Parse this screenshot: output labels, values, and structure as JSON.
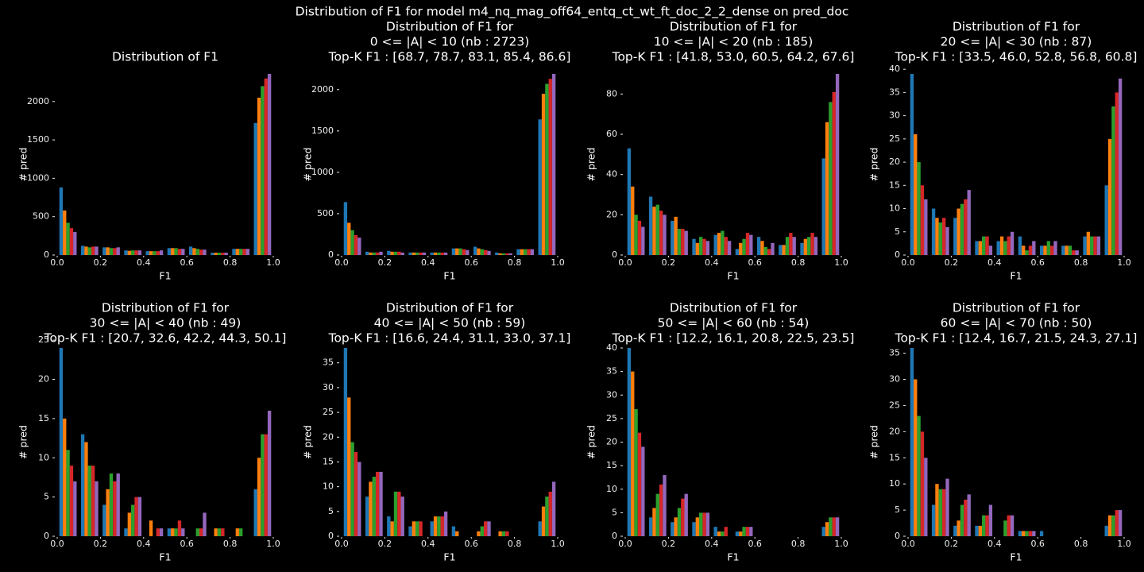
{
  "title": "Distribution of F1 for model m4_nq_mag_off64_entq_ct_wt_ft_doc_2_2_dense on pred_doc",
  "chart_data": [
    {
      "type": "histogram",
      "title_lines": [
        "Distribution of F1"
      ],
      "x_label": "F1",
      "y_label": "# pred",
      "bins": [
        0,
        0.1,
        0.2,
        0.3,
        0.4,
        0.5,
        0.6,
        0.7,
        0.8,
        0.9,
        1.0
      ],
      "xlim": [
        0,
        1
      ],
      "xticks": [
        {
          "value": 0,
          "label": "0.0"
        },
        {
          "value": 0.2,
          "label": "0.2"
        },
        {
          "value": 0.4,
          "label": "0.4"
        },
        {
          "value": 0.6,
          "label": "0.6"
        },
        {
          "value": 0.8,
          "label": "0.8"
        },
        {
          "value": 1,
          "label": "1.0"
        }
      ],
      "ylim": [
        0,
        2360
      ],
      "yticks": [
        0,
        500,
        1000,
        1500,
        2000
      ],
      "series": [
        {
          "color": "#1f77b4",
          "values": [
            880,
            120,
            100,
            60,
            50,
            90,
            110,
            30,
            80,
            1720
          ]
        },
        {
          "color": "#ff7f0e",
          "values": [
            580,
            110,
            100,
            55,
            50,
            90,
            90,
            30,
            80,
            2050
          ]
        },
        {
          "color": "#2ca02c",
          "values": [
            420,
            100,
            90,
            60,
            50,
            90,
            80,
            30,
            80,
            2200
          ]
        },
        {
          "color": "#d62728",
          "values": [
            350,
            110,
            90,
            60,
            50,
            80,
            70,
            30,
            80,
            2300
          ]
        },
        {
          "color": "#9467bd",
          "values": [
            300,
            110,
            100,
            60,
            60,
            80,
            70,
            30,
            80,
            2360
          ]
        }
      ]
    },
    {
      "type": "histogram",
      "title_lines": [
        "Distribution of F1 for",
        "0 <= |A| < 10 (nb : 2723)",
        "Top-K F1 : [68.7, 78.7, 83.1, 85.4, 86.6]"
      ],
      "x_label": "F1",
      "y_label": "# pred",
      "bins": [
        0,
        0.1,
        0.2,
        0.3,
        0.4,
        0.5,
        0.6,
        0.7,
        0.8,
        0.9,
        1.0
      ],
      "xlim": [
        0,
        1
      ],
      "xticks": [
        {
          "value": 0,
          "label": "0.0"
        },
        {
          "value": 0.2,
          "label": "0.2"
        },
        {
          "value": 0.4,
          "label": "0.4"
        },
        {
          "value": 0.6,
          "label": "0.6"
        },
        {
          "value": 0.8,
          "label": "0.8"
        },
        {
          "value": 1,
          "label": "1.0"
        }
      ],
      "ylim": [
        0,
        2190
      ],
      "yticks": [
        0,
        500,
        1000,
        1500,
        2000
      ],
      "series": [
        {
          "color": "#1f77b4",
          "values": [
            640,
            40,
            50,
            30,
            30,
            80,
            100,
            30,
            70,
            1640
          ]
        },
        {
          "color": "#ff7f0e",
          "values": [
            390,
            30,
            40,
            30,
            30,
            80,
            80,
            20,
            70,
            1950
          ]
        },
        {
          "color": "#2ca02c",
          "values": [
            300,
            30,
            40,
            30,
            30,
            80,
            70,
            20,
            70,
            2070
          ]
        },
        {
          "color": "#d62728",
          "values": [
            240,
            30,
            40,
            30,
            30,
            70,
            60,
            20,
            70,
            2130
          ]
        },
        {
          "color": "#9467bd",
          "values": [
            210,
            40,
            30,
            30,
            30,
            60,
            50,
            20,
            70,
            2190
          ]
        }
      ]
    },
    {
      "type": "histogram",
      "title_lines": [
        "Distribution of F1 for",
        "10 <= |A| < 20 (nb : 185)",
        "Top-K F1 : [41.8, 53.0, 60.5, 64.2, 67.6]"
      ],
      "x_label": "F1",
      "y_label": "# pred",
      "bins": [
        0,
        0.1,
        0.2,
        0.3,
        0.4,
        0.5,
        0.6,
        0.7,
        0.8,
        0.9,
        1.0
      ],
      "xlim": [
        0,
        1
      ],
      "xticks": [
        {
          "value": 0,
          "label": "0.0"
        },
        {
          "value": 0.2,
          "label": "0.2"
        },
        {
          "value": 0.4,
          "label": "0.4"
        },
        {
          "value": 0.6,
          "label": "0.6"
        },
        {
          "value": 0.8,
          "label": "0.8"
        },
        {
          "value": 1,
          "label": "1.0"
        }
      ],
      "ylim": [
        0,
        90
      ],
      "yticks": [
        0,
        20,
        40,
        60,
        80
      ],
      "series": [
        {
          "color": "#1f77b4",
          "values": [
            53,
            29,
            17,
            8,
            10,
            3,
            9,
            5,
            6,
            48
          ]
        },
        {
          "color": "#ff7f0e",
          "values": [
            34,
            24,
            19,
            6,
            11,
            6,
            7,
            5,
            8,
            66
          ]
        },
        {
          "color": "#2ca02c",
          "values": [
            20,
            25,
            13,
            9,
            12,
            8,
            4,
            9,
            9,
            76
          ]
        },
        {
          "color": "#d62728",
          "values": [
            17,
            22,
            13,
            8,
            9,
            11,
            3,
            11,
            11,
            81
          ]
        },
        {
          "color": "#9467bd",
          "values": [
            14,
            20,
            12,
            7,
            7,
            10,
            6,
            9,
            9,
            90
          ]
        }
      ]
    },
    {
      "type": "histogram",
      "title_lines": [
        "Distribution of F1 for",
        "20 <= |A| < 30 (nb : 87)",
        "Top-K F1 : [33.5, 46.0, 52.8, 56.8, 60.8]"
      ],
      "x_label": "F1",
      "y_label": "# pred",
      "bins": [
        0,
        0.1,
        0.2,
        0.3,
        0.4,
        0.5,
        0.6,
        0.7,
        0.8,
        0.9,
        1.0
      ],
      "xlim": [
        0,
        1
      ],
      "xticks": [
        {
          "value": 0,
          "label": "0.0"
        },
        {
          "value": 0.2,
          "label": "0.2"
        },
        {
          "value": 0.4,
          "label": "0.4"
        },
        {
          "value": 0.6,
          "label": "0.6"
        },
        {
          "value": 0.8,
          "label": "0.8"
        },
        {
          "value": 1,
          "label": "1.0"
        }
      ],
      "ylim": [
        0,
        39
      ],
      "yticks": [
        0,
        5,
        10,
        15,
        20,
        25,
        30,
        35,
        40
      ],
      "series": [
        {
          "color": "#1f77b4",
          "values": [
            39,
            10,
            8,
            3,
            3,
            4,
            2,
            2,
            4,
            15
          ]
        },
        {
          "color": "#ff7f0e",
          "values": [
            26,
            8,
            10,
            3,
            4,
            2,
            2,
            2,
            5,
            25
          ]
        },
        {
          "color": "#2ca02c",
          "values": [
            20,
            7,
            11,
            4,
            3,
            1,
            3,
            2,
            4,
            32
          ]
        },
        {
          "color": "#d62728",
          "values": [
            15,
            8,
            12,
            4,
            4,
            2,
            2,
            1,
            4,
            35
          ]
        },
        {
          "color": "#9467bd",
          "values": [
            12,
            6,
            14,
            2,
            5,
            3,
            3,
            1,
            4,
            38
          ]
        }
      ]
    },
    {
      "type": "histogram",
      "title_lines": [
        "Distribution of F1 for",
        "30 <= |A| < 40 (nb : 49)",
        "Top-K F1 : [20.7, 32.6, 42.2, 44.3, 50.1]"
      ],
      "x_label": "F1",
      "y_label": "# pred",
      "bins": [
        0,
        0.1,
        0.2,
        0.3,
        0.4,
        0.5,
        0.6,
        0.7,
        0.8,
        0.9,
        1.0
      ],
      "xlim": [
        0,
        1
      ],
      "xticks": [
        {
          "value": 0,
          "label": "0.0"
        },
        {
          "value": 0.2,
          "label": "0.2"
        },
        {
          "value": 0.4,
          "label": "0.4"
        },
        {
          "value": 0.6,
          "label": "0.6"
        },
        {
          "value": 0.8,
          "label": "0.8"
        },
        {
          "value": 1,
          "label": "1.0"
        }
      ],
      "ylim": [
        0,
        24
      ],
      "yticks": [
        0,
        5,
        10,
        15,
        20,
        25
      ],
      "series": [
        {
          "color": "#1f77b4",
          "values": [
            24,
            13,
            4,
            1,
            0,
            1,
            0,
            0,
            0,
            6
          ]
        },
        {
          "color": "#ff7f0e",
          "values": [
            15,
            12,
            6,
            3,
            2,
            1,
            0,
            1,
            1,
            10
          ]
        },
        {
          "color": "#2ca02c",
          "values": [
            11,
            9,
            8,
            4,
            0,
            1,
            1,
            1,
            1,
            13
          ]
        },
        {
          "color": "#d62728",
          "values": [
            9,
            9,
            7,
            5,
            1,
            2,
            1,
            1,
            0,
            13
          ]
        },
        {
          "color": "#9467bd",
          "values": [
            7,
            7,
            8,
            5,
            1,
            1,
            3,
            0,
            0,
            16
          ]
        }
      ]
    },
    {
      "type": "histogram",
      "title_lines": [
        "Distribution of F1 for",
        "40 <= |A| < 50 (nb : 59)",
        "Top-K F1 : [16.6, 24.4, 31.1, 33.0, 37.1]"
      ],
      "x_label": "F1",
      "y_label": "# pred",
      "bins": [
        0,
        0.1,
        0.2,
        0.3,
        0.4,
        0.5,
        0.6,
        0.7,
        0.8,
        0.9,
        1.0
      ],
      "xlim": [
        0,
        1
      ],
      "xticks": [
        {
          "value": 0,
          "label": "0.0"
        },
        {
          "value": 0.2,
          "label": "0.2"
        },
        {
          "value": 0.4,
          "label": "0.4"
        },
        {
          "value": 0.6,
          "label": "0.6"
        },
        {
          "value": 0.8,
          "label": "0.8"
        },
        {
          "value": 1,
          "label": "1.0"
        }
      ],
      "ylim": [
        0,
        38
      ],
      "yticks": [
        0,
        5,
        10,
        15,
        20,
        25,
        30,
        35
      ],
      "series": [
        {
          "color": "#1f77b4",
          "values": [
            38,
            8,
            4,
            2,
            3,
            2,
            0,
            0,
            0,
            3
          ]
        },
        {
          "color": "#ff7f0e",
          "values": [
            28,
            11,
            3,
            3,
            4,
            1,
            1,
            1,
            0,
            6
          ]
        },
        {
          "color": "#2ca02c",
          "values": [
            19,
            12,
            9,
            3,
            4,
            0,
            2,
            1,
            0,
            8
          ]
        },
        {
          "color": "#d62728",
          "values": [
            17,
            13,
            9,
            3,
            4,
            0,
            3,
            1,
            0,
            9
          ]
        },
        {
          "color": "#9467bd",
          "values": [
            15,
            13,
            8,
            0,
            5,
            0,
            3,
            0,
            0,
            11
          ]
        }
      ]
    },
    {
      "type": "histogram",
      "title_lines": [
        "Distribution of F1 for",
        "50 <= |A| < 60 (nb : 54)",
        "Top-K F1 : [12.2, 16.1, 20.8, 22.5, 23.5]"
      ],
      "x_label": "F1",
      "y_label": "# pred",
      "bins": [
        0,
        0.1,
        0.2,
        0.3,
        0.4,
        0.5,
        0.6,
        0.7,
        0.8,
        0.9,
        1.0
      ],
      "xlim": [
        0,
        1
      ],
      "xticks": [
        {
          "value": 0,
          "label": "0.0"
        },
        {
          "value": 0.2,
          "label": "0.2"
        },
        {
          "value": 0.4,
          "label": "0.4"
        },
        {
          "value": 0.6,
          "label": "0.6"
        },
        {
          "value": 0.8,
          "label": "0.8"
        },
        {
          "value": 1,
          "label": "1.0"
        }
      ],
      "ylim": [
        0,
        40
      ],
      "yticks": [
        0,
        5,
        10,
        15,
        20,
        25,
        30,
        35,
        40
      ],
      "series": [
        {
          "color": "#1f77b4",
          "values": [
            40,
            4,
            3,
            3,
            2,
            1,
            0,
            0,
            0,
            2
          ]
        },
        {
          "color": "#ff7f0e",
          "values": [
            35,
            6,
            4,
            4,
            1,
            1,
            0,
            0,
            0,
            3
          ]
        },
        {
          "color": "#2ca02c",
          "values": [
            27,
            9,
            6,
            5,
            1,
            2,
            0,
            0,
            0,
            4
          ]
        },
        {
          "color": "#d62728",
          "values": [
            22,
            11,
            8,
            5,
            2,
            2,
            0,
            0,
            0,
            4
          ]
        },
        {
          "color": "#9467bd",
          "values": [
            19,
            13,
            9,
            5,
            0,
            2,
            0,
            0,
            0,
            4
          ]
        }
      ]
    },
    {
      "type": "histogram",
      "title_lines": [
        "Distribution of F1 for",
        "60 <= |A| < 70 (nb : 50)",
        "Top-K F1 : [12.4, 16.7, 21.5, 24.3, 27.1]"
      ],
      "x_label": "F1",
      "y_label": "# pred",
      "bins": [
        0,
        0.1,
        0.2,
        0.3,
        0.4,
        0.5,
        0.6,
        0.7,
        0.8,
        0.9,
        1.0
      ],
      "xlim": [
        0,
        1
      ],
      "xticks": [
        {
          "value": 0,
          "label": "0.0"
        },
        {
          "value": 0.2,
          "label": "0.2"
        },
        {
          "value": 0.4,
          "label": "0.4"
        },
        {
          "value": 0.6,
          "label": "0.6"
        },
        {
          "value": 0.8,
          "label": "0.8"
        },
        {
          "value": 1,
          "label": "1.0"
        }
      ],
      "ylim": [
        0,
        36
      ],
      "yticks": [
        0,
        5,
        10,
        15,
        20,
        25,
        30,
        35
      ],
      "series": [
        {
          "color": "#1f77b4",
          "values": [
            36,
            6,
            2,
            2,
            0,
            1,
            1,
            0,
            0,
            2
          ]
        },
        {
          "color": "#ff7f0e",
          "values": [
            30,
            10,
            3,
            2,
            0,
            1,
            0,
            0,
            0,
            4
          ]
        },
        {
          "color": "#2ca02c",
          "values": [
            23,
            9,
            6,
            4,
            3,
            1,
            0,
            0,
            0,
            4
          ]
        },
        {
          "color": "#d62728",
          "values": [
            20,
            9,
            7,
            4,
            4,
            1,
            0,
            0,
            0,
            5
          ]
        },
        {
          "color": "#9467bd",
          "values": [
            15,
            11,
            8,
            6,
            4,
            1,
            0,
            0,
            0,
            5
          ]
        }
      ]
    }
  ]
}
